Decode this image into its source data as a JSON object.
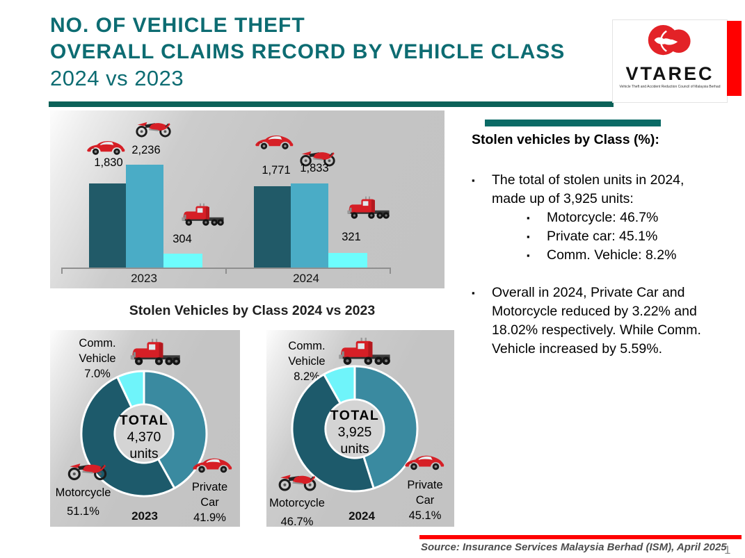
{
  "header": {
    "title_line1": "NO. OF VEHICLE THEFT",
    "title_line2": "OVERALL CLAIMS RECORD BY VEHICLE CLASS",
    "title_line3": "2024 vs 2023"
  },
  "logo": {
    "name": "VTAREC",
    "tagline": "Vehicle Theft and Accident Reduction Council of Malaysia Berhad"
  },
  "colors": {
    "title_teal": "#0d6c72",
    "rule_teal": "#0b6158",
    "accent_teal": "#0b6b66",
    "red": "#ff0000",
    "bar_dark": "#215a68",
    "bar_mid": "#4aacc6",
    "bar_cyan": "#6dfdfd",
    "donut_dark": "#1d5a6b",
    "donut_mid": "#3a8aa0",
    "donut_cyan": "#6ff4fa"
  },
  "bar_panel": {
    "groups": [
      {
        "axis_label": "2023",
        "values": {
          "car": "1,830",
          "moto": "2,236",
          "truck": "304"
        }
      },
      {
        "axis_label": "2024",
        "values": {
          "car": "1,771",
          "moto": "1,833",
          "truck": "321"
        }
      }
    ]
  },
  "donut_section": {
    "heading": "Stolen Vehicles by Class 2024 vs 2023",
    "donuts": [
      {
        "year": "2023",
        "center_l1": "TOTAL",
        "center_l2": "4,370",
        "center_l3": "units",
        "comm_l1": "Comm.",
        "comm_l2": "Vehicle",
        "comm_pct": "7.0%",
        "moto_label": "Motorcycle",
        "moto_pct": "51.1%",
        "car_l1": "Private",
        "car_l2": "Car",
        "car_pct": "41.9%"
      },
      {
        "year": "2024",
        "center_l1": "TOTAL",
        "center_l2": "3,925",
        "center_l3": "units",
        "comm_l1": "Comm.",
        "comm_l2": "Vehicle",
        "comm_pct": "8.2%",
        "moto_label": "Motorcycle",
        "moto_pct": "46.7%",
        "car_l1": "Private",
        "car_l2": "Car",
        "car_pct": "45.1%"
      }
    ]
  },
  "side_panel": {
    "heading": "Stolen vehicles by Class (%):",
    "bullet1": "The total of stolen units in 2024, made up of 3,925 units:",
    "sub_bullets": [
      "Motorcycle: 46.7%",
      "Private car: 45.1%",
      "Comm. Vehicle: 8.2%"
    ],
    "bullet2": "Overall in 2024, Private Car and Motorcycle reduced by 3.22% and 18.02% respectively. While Comm. Vehicle increased by 5.59%."
  },
  "footer": {
    "source": "Source: Insurance Services Malaysia Berhad (ISM), April 2025",
    "page_number": "1"
  },
  "chart_data": [
    {
      "type": "bar",
      "title": "No. of vehicle theft overall claims record by vehicle class",
      "categories": [
        "2023",
        "2024"
      ],
      "series": [
        {
          "name": "Private Car",
          "values": [
            1830,
            1771
          ],
          "color": "#215a68"
        },
        {
          "name": "Motorcycle",
          "values": [
            2236,
            1833
          ],
          "color": "#4aacc6"
        },
        {
          "name": "Comm. Vehicle",
          "values": [
            304,
            321
          ],
          "color": "#6dfdfd"
        }
      ],
      "data_labels": [
        [
          "1,830",
          "2,236",
          "304"
        ],
        [
          "1,771",
          "1,833",
          "321"
        ]
      ],
      "ylim": [
        0,
        2236
      ],
      "grid": false,
      "legend": "none, red vehicle pictograms above each bar"
    },
    {
      "type": "pie",
      "title": "Stolen Vehicles by Class 2023",
      "subtype": "donut",
      "center_label": "TOTAL 4,370 units",
      "total_units": 4370,
      "slices": [
        {
          "label": "Private Car",
          "pct": 41.9,
          "color": "#3a8aa0"
        },
        {
          "label": "Motorcycle",
          "pct": 51.1,
          "color": "#1d5a6b"
        },
        {
          "label": "Comm. Vehicle",
          "pct": 7.0,
          "color": "#6ff4fa"
        }
      ]
    },
    {
      "type": "pie",
      "title": "Stolen Vehicles by Class 2024",
      "subtype": "donut",
      "center_label": "TOTAL 3,925 units",
      "total_units": 3925,
      "slices": [
        {
          "label": "Private Car",
          "pct": 45.1,
          "color": "#3a8aa0"
        },
        {
          "label": "Motorcycle",
          "pct": 46.7,
          "color": "#1d5a6b"
        },
        {
          "label": "Comm. Vehicle",
          "pct": 8.2,
          "color": "#6ff4fa"
        }
      ]
    }
  ]
}
